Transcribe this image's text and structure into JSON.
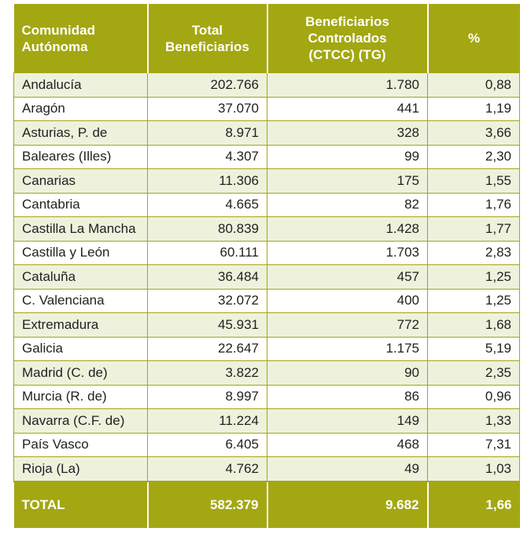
{
  "header": {
    "comunidad": [
      "Comunidad",
      "Autónoma"
    ],
    "total": [
      "Total",
      "Beneficiarios"
    ],
    "controlados": [
      "Beneficiarios",
      "Controlados",
      "(CTCC) (TG)"
    ],
    "pct": "%"
  },
  "rows": [
    {
      "name": "Andalucía",
      "total": "202.766",
      "ctrl": "1.780",
      "pct": "0,88"
    },
    {
      "name": "Aragón",
      "total": "37.070",
      "ctrl": "441",
      "pct": "1,19"
    },
    {
      "name": "Asturias, P. de",
      "total": "8.971",
      "ctrl": "328",
      "pct": "3,66"
    },
    {
      "name": "Baleares (Illes)",
      "total": "4.307",
      "ctrl": "99",
      "pct": "2,30"
    },
    {
      "name": "Canarias",
      "total": "11.306",
      "ctrl": "175",
      "pct": "1,55"
    },
    {
      "name": "Cantabria",
      "total": "4.665",
      "ctrl": "82",
      "pct": "1,76"
    },
    {
      "name": "Castilla La Mancha",
      "total": "80.839",
      "ctrl": "1.428",
      "pct": "1,77"
    },
    {
      "name": "Castilla y León",
      "total": "60.111",
      "ctrl": "1.703",
      "pct": "2,83"
    },
    {
      "name": "Cataluña",
      "total": "36.484",
      "ctrl": "457",
      "pct": "1,25"
    },
    {
      "name": "C. Valenciana",
      "total": "32.072",
      "ctrl": "400",
      "pct": "1,25"
    },
    {
      "name": "Extremadura",
      "total": "45.931",
      "ctrl": "772",
      "pct": "1,68"
    },
    {
      "name": "Galicia",
      "total": "22.647",
      "ctrl": "1.175",
      "pct": "5,19"
    },
    {
      "name": "Madrid (C. de)",
      "total": "3.822",
      "ctrl": "90",
      "pct": "2,35"
    },
    {
      "name": "Murcia (R. de)",
      "total": "8.997",
      "ctrl": "86",
      "pct": "0,96"
    },
    {
      "name": "Navarra (C.F. de)",
      "total": "11.224",
      "ctrl": "149",
      "pct": "1,33"
    },
    {
      "name": "País Vasco",
      "total": "6.405",
      "ctrl": "468",
      "pct": "7,31"
    },
    {
      "name": "Rioja (La)",
      "total": "4.762",
      "ctrl": "49",
      "pct": "1,03"
    }
  ],
  "footer": {
    "name": "TOTAL",
    "total": "582.379",
    "ctrl": "9.682",
    "pct": "1,66"
  },
  "colors": {
    "header_bg": "#a3a712",
    "stripe_bg": "#eef1dc"
  }
}
